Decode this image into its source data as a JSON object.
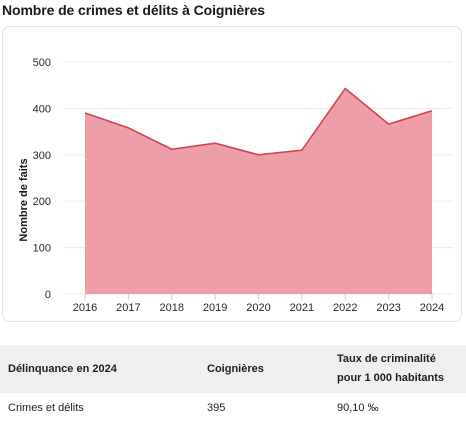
{
  "page": {
    "title": "Nombre de crimes et délits à Coignières"
  },
  "colors": {
    "area_fill": "#ee9ea6",
    "line": "#d24455",
    "grid": "#ececec",
    "table_header_bg": "#efefef"
  },
  "chart_data": {
    "type": "area",
    "title": "Nombre de crimes et délits à Coignières",
    "xlabel": "",
    "ylabel": "Nombre de faits",
    "x": [
      "2016",
      "2017",
      "2018",
      "2019",
      "2020",
      "2021",
      "2022",
      "2023",
      "2024"
    ],
    "series": [
      {
        "values": [
          390,
          358,
          312,
          325,
          300,
          310,
          443,
          366,
          395
        ]
      }
    ],
    "ylim": [
      0,
      500
    ],
    "yticks": [
      0,
      100,
      200,
      300,
      400,
      500
    ],
    "grid": true,
    "legend": "none"
  },
  "table": {
    "headers": [
      "Délinquance en 2024",
      "Coignières",
      "Taux de criminalité pour 1 000 habitants"
    ],
    "rows": [
      [
        "Crimes et délits",
        "395",
        "90,10 ‰"
      ]
    ]
  }
}
